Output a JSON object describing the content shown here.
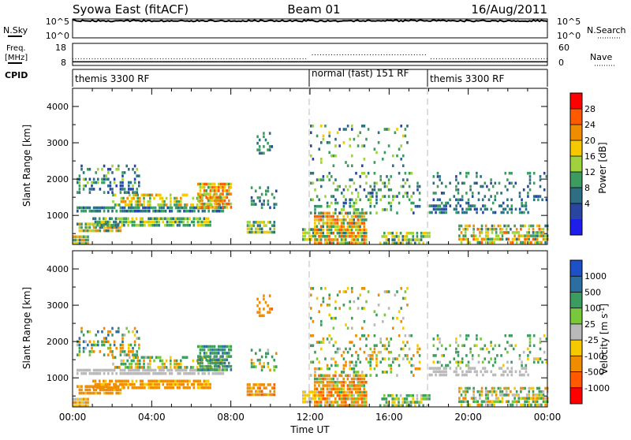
{
  "header": {
    "title": "Syowa East (fitACF)",
    "beam": "Beam 01",
    "date": "16/Aug/2011"
  },
  "noise_panel": {
    "left_label": "N.Sky",
    "left_ticks": [
      "10^5",
      "10^0"
    ],
    "right_ticks": [
      "10^5",
      "10^0"
    ],
    "right_label": "N.Search"
  },
  "freq_panel": {
    "left_label_1": "Freq.",
    "left_label_2": "[MHz]",
    "left_ticks": [
      "18",
      "8"
    ],
    "right_ticks": [
      "60",
      "0"
    ],
    "right_label": "Nave"
  },
  "cpid": {
    "label": "CPID",
    "segments": [
      {
        "label": "themis 3300 RF",
        "start_hour": 0,
        "end_hour": 12
      },
      {
        "label": "normal (fast) 151 RF",
        "start_hour": 12,
        "end_hour": 18
      },
      {
        "label": "themis 3300 RF",
        "start_hour": 18,
        "end_hour": 24
      }
    ]
  },
  "x_axis": {
    "label": "Time UT",
    "ticks": [
      "00:00",
      "04:00",
      "08:00",
      "12:00",
      "16:00",
      "20:00",
      "00:00"
    ],
    "tick_hours": [
      0,
      4,
      8,
      12,
      16,
      20,
      24
    ]
  },
  "power_colorbar": {
    "label": "Power [dB]",
    "ticks": [
      "28",
      "24",
      "20",
      "16",
      "12",
      "8",
      "4"
    ],
    "colors": [
      "#ff0000",
      "#ff5a00",
      "#f08c00",
      "#f5c800",
      "#9fd23c",
      "#3c9b5f",
      "#2d6e82",
      "#2846a0",
      "#1e1eeb"
    ]
  },
  "velocity_colorbar": {
    "label": "Velocity [m s^-1]",
    "ticks": [
      "1000",
      "500",
      "100",
      "25",
      "-25",
      "-100",
      "-500",
      "-1000"
    ],
    "colors": [
      "#1e50c8",
      "#2d6ea0",
      "#3c9b5f",
      "#78c83c",
      "#b9b9b9",
      "#f5c800",
      "#f08c00",
      "#ff5a00",
      "#ff0000"
    ]
  },
  "chart_data": [
    {
      "type": "line",
      "panel": "noise",
      "series": [
        {
          "name": "N.Sky",
          "x_hours": [
            0,
            2,
            4,
            6,
            8,
            10,
            12,
            14,
            16,
            18,
            20,
            22,
            24
          ],
          "values": [
            31623,
            31623,
            31623,
            31623,
            31623,
            31623,
            31623,
            31623,
            31623,
            31623,
            31623,
            31623,
            31623
          ]
        }
      ]
    },
    {
      "type": "scatter",
      "panel": "frequency",
      "series": [
        {
          "name": "Freq.",
          "x_hours": [
            0,
            4,
            8,
            11.9,
            12.1,
            16,
            17.9,
            18.1,
            24
          ],
          "values": [
            11,
            11,
            11,
            11,
            12.8,
            12.8,
            12.8,
            11,
            11
          ]
        },
        {
          "name": "Nave",
          "x_hours": [
            0,
            12,
            18,
            24
          ],
          "values": [
            10,
            10,
            10,
            10
          ]
        }
      ]
    },
    {
      "type": "heatmap",
      "panel": "power",
      "ylabel": "Slant Range [km]",
      "xlabel": "",
      "xlim": [
        0,
        24
      ],
      "ylim": [
        200,
        4500
      ],
      "y_ticks": [
        1000,
        2000,
        3000,
        4000
      ],
      "value_label": "Power [dB]",
      "regions": [
        {
          "t0": 0.0,
          "t1": 0.8,
          "r0": 200,
          "r1": 450,
          "v0": 8,
          "v1": 28,
          "density": 0.95
        },
        {
          "t0": 0.2,
          "t1": 2.5,
          "r0": 600,
          "r1": 800,
          "v0": 8,
          "v1": 26,
          "density": 0.8
        },
        {
          "t0": 0.2,
          "t1": 7.6,
          "r0": 1100,
          "r1": 1250,
          "v0": 4,
          "v1": 14,
          "density": 0.8
        },
        {
          "t0": 1.0,
          "t1": 7.0,
          "r0": 750,
          "r1": 950,
          "v0": 8,
          "v1": 20,
          "density": 0.7
        },
        {
          "t0": 2.0,
          "t1": 7.5,
          "r0": 1300,
          "r1": 1600,
          "v0": 10,
          "v1": 24,
          "density": 0.5
        },
        {
          "t0": 6.3,
          "t1": 8.0,
          "r0": 1200,
          "r1": 1900,
          "v0": 12,
          "v1": 30,
          "density": 0.8
        },
        {
          "t0": 0.2,
          "t1": 3.5,
          "r0": 1600,
          "r1": 2400,
          "v0": 4,
          "v1": 16,
          "density": 0.3
        },
        {
          "t0": 8.8,
          "t1": 10.2,
          "r0": 550,
          "r1": 850,
          "v0": 6,
          "v1": 22,
          "density": 0.8
        },
        {
          "t0": 9.0,
          "t1": 10.3,
          "r0": 1200,
          "r1": 1800,
          "v0": 4,
          "v1": 14,
          "density": 0.4
        },
        {
          "t0": 9.3,
          "t1": 10.1,
          "r0": 2700,
          "r1": 3300,
          "v0": 4,
          "v1": 14,
          "density": 0.4
        },
        {
          "t0": 11.6,
          "t1": 12.3,
          "r0": 300,
          "r1": 650,
          "v0": 8,
          "v1": 22,
          "density": 0.7
        },
        {
          "t0": 12.2,
          "t1": 14.8,
          "r0": 250,
          "r1": 1100,
          "v0": 8,
          "v1": 30,
          "density": 0.85
        },
        {
          "t0": 12.0,
          "t1": 17.5,
          "r0": 1100,
          "r1": 2200,
          "v0": 4,
          "v1": 18,
          "density": 0.25
        },
        {
          "t0": 12.0,
          "t1": 17.0,
          "r0": 2400,
          "r1": 3500,
          "v0": 4,
          "v1": 20,
          "density": 0.12
        },
        {
          "t0": 15.5,
          "t1": 18.0,
          "r0": 250,
          "r1": 550,
          "v0": 8,
          "v1": 22,
          "density": 0.6
        },
        {
          "t0": 18.0,
          "t1": 23.0,
          "r0": 1050,
          "r1": 1300,
          "v0": 4,
          "v1": 12,
          "density": 0.5
        },
        {
          "t0": 19.5,
          "t1": 24.0,
          "r0": 250,
          "r1": 750,
          "v0": 8,
          "v1": 28,
          "density": 0.6
        },
        {
          "t0": 18.2,
          "t1": 24.0,
          "r0": 1300,
          "r1": 2200,
          "v0": 4,
          "v1": 14,
          "density": 0.2
        }
      ]
    },
    {
      "type": "heatmap",
      "panel": "velocity",
      "ylabel": "Slant Range [km]",
      "xlabel": "Time UT",
      "xlim": [
        0,
        24
      ],
      "ylim": [
        200,
        4500
      ],
      "y_ticks": [
        1000,
        2000,
        3000,
        4000
      ],
      "value_label": "Velocity [m s^-1]",
      "regions": [
        {
          "t0": 0.0,
          "t1": 0.8,
          "r0": 200,
          "r1": 450,
          "v0": -150,
          "v1": 20,
          "density": 0.95
        },
        {
          "t0": 0.2,
          "t1": 2.5,
          "r0": 600,
          "r1": 800,
          "v0": -500,
          "v1": -50,
          "density": 0.8
        },
        {
          "t0": 0.2,
          "t1": 7.6,
          "r0": 1100,
          "r1": 1250,
          "v0": -20,
          "v1": 20,
          "density": 0.8
        },
        {
          "t0": 1.0,
          "t1": 7.0,
          "r0": 750,
          "r1": 950,
          "v0": -500,
          "v1": -50,
          "density": 0.7
        },
        {
          "t0": 2.0,
          "t1": 7.5,
          "r0": 1300,
          "r1": 1600,
          "v0": -200,
          "v1": 200,
          "density": 0.5
        },
        {
          "t0": 6.3,
          "t1": 8.0,
          "r0": 1200,
          "r1": 1900,
          "v0": 30,
          "v1": 600,
          "density": 0.8
        },
        {
          "t0": 0.2,
          "t1": 3.5,
          "r0": 1600,
          "r1": 2400,
          "v0": -300,
          "v1": 800,
          "density": 0.3
        },
        {
          "t0": 8.8,
          "t1": 10.2,
          "r0": 550,
          "r1": 850,
          "v0": -600,
          "v1": -50,
          "density": 0.8
        },
        {
          "t0": 9.0,
          "t1": 10.3,
          "r0": 1200,
          "r1": 1800,
          "v0": -200,
          "v1": 300,
          "density": 0.4
        },
        {
          "t0": 9.3,
          "t1": 10.1,
          "r0": 2700,
          "r1": 3300,
          "v0": -600,
          "v1": -100,
          "density": 0.4
        },
        {
          "t0": 11.6,
          "t1": 12.3,
          "r0": 300,
          "r1": 650,
          "v0": -100,
          "v1": 20,
          "density": 0.7
        },
        {
          "t0": 12.2,
          "t1": 14.8,
          "r0": 250,
          "r1": 1100,
          "v0": -700,
          "v1": 150,
          "density": 0.85
        },
        {
          "t0": 12.0,
          "t1": 17.5,
          "r0": 1100,
          "r1": 2200,
          "v0": -300,
          "v1": 300,
          "density": 0.25
        },
        {
          "t0": 12.0,
          "t1": 17.0,
          "r0": 2400,
          "r1": 3500,
          "v0": -300,
          "v1": 300,
          "density": 0.12
        },
        {
          "t0": 15.5,
          "t1": 18.0,
          "r0": 250,
          "r1": 550,
          "v0": -100,
          "v1": 300,
          "density": 0.6
        },
        {
          "t0": 18.0,
          "t1": 23.0,
          "r0": 1050,
          "r1": 1300,
          "v0": -20,
          "v1": 20,
          "density": 0.5
        },
        {
          "t0": 19.5,
          "t1": 24.0,
          "r0": 250,
          "r1": 750,
          "v0": -200,
          "v1": 300,
          "density": 0.6
        },
        {
          "t0": 18.2,
          "t1": 24.0,
          "r0": 1300,
          "r1": 2200,
          "v0": -100,
          "v1": 400,
          "density": 0.2
        }
      ]
    }
  ]
}
